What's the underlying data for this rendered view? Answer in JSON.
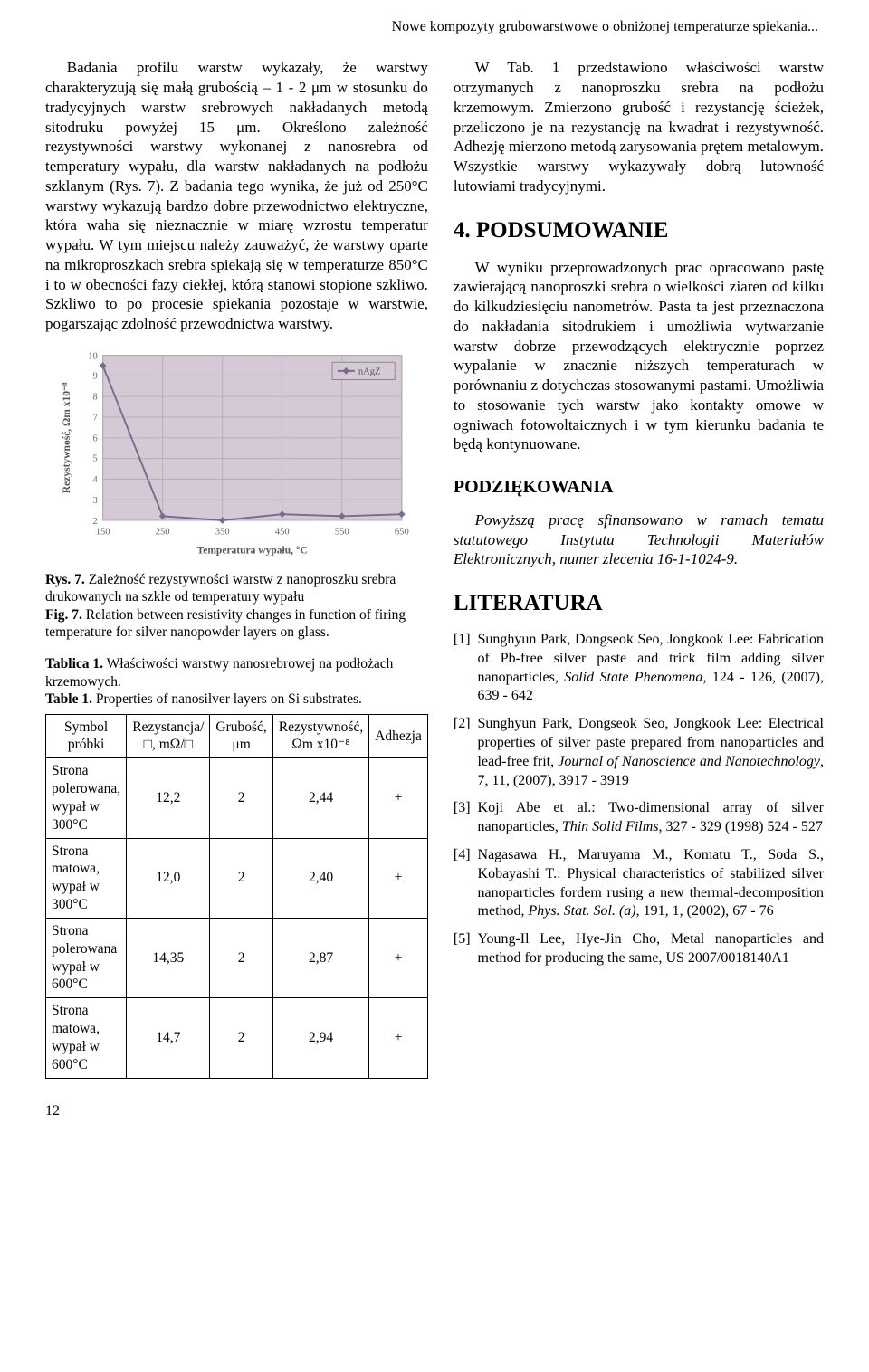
{
  "runningHeader": "Nowe kompozyty grubowarstwowe o obniżonej temperaturze spiekania...",
  "leftCol": {
    "para1": "Badania profilu warstw wykazały, że warstwy charakteryzują się małą grubością – 1 - 2 μm w stosunku do tradycyjnych warstw srebrowych nakładanych metodą sitodruku powyżej 15 μm. Określono zależność rezystywności warstwy wykonanej z nanosrebra od temperatury wypału, dla warstw nakładanych na podłożu szklanym (Rys. 7). Z badania tego wynika, że już od 250°C warstwy wykazują bardzo dobre przewodnictwo elektryczne, która waha się nieznacznie w miarę wzrostu temperatur wypału. W tym miejscu należy zauważyć, że warstwy oparte na mikroproszkach srebra spiekają się w temperaturze 850°C i to w obecności fazy ciekłej, którą stanowi stopione szkliwo. Szkliwo to po procesie spiekania pozostaje w warstwie, pogarszając zdolność przewodnictwa warstwy.",
    "chart": {
      "type": "line",
      "series_label": "nAgZ",
      "x_values": [
        150,
        250,
        350,
        450,
        550,
        650
      ],
      "y_values": [
        9.5,
        2.2,
        2.0,
        2.3,
        2.2,
        2.3
      ],
      "xlim": [
        150,
        650
      ],
      "ylim": [
        2,
        10
      ],
      "xtick_step": 100,
      "ytick_step": 1,
      "xlabel": "Temperatura wypału, °C",
      "ylabel": "Rezystywność, Ωm x10⁻⁸",
      "background_color": "#d6c9d6",
      "line_color": "#7a6a8c",
      "marker": "diamond",
      "marker_size": 6,
      "grid_color": "#b9abbc",
      "border_color": "#888888",
      "legend_pos": "top-right",
      "label_fontsize": 12,
      "tick_fontsize": 10
    },
    "figCaption": {
      "label_pl": "Rys. 7.",
      "text_pl": " Zależność rezystywności warstw z nanoproszku srebra drukowanych na szkle od temperatury wypału",
      "label_en": "Fig. 7.",
      "text_en": " Relation between resistivity changes in function of firing temperature for silver nanopowder layers on glass."
    },
    "tabCaption": {
      "label_pl": "Tablica 1.",
      "text_pl": " Właściwości warstwy nanosrebrowej na podłożach krzemowych.",
      "label_en": "Table 1.",
      "text_en": " Properties of nanosilver layers on Si substrates."
    },
    "table": {
      "headers": [
        "Symbol próbki",
        "Rezystancja/□, mΩ/□",
        "Grubość, μm",
        "Rezystywność, Ωm x10⁻⁸",
        "Adhezja"
      ],
      "rows": [
        [
          "Strona polerowana, wypał w 300°C",
          "12,2",
          "2",
          "2,44",
          "+"
        ],
        [
          "Strona matowa, wypał w 300°C",
          "12,0",
          "2",
          "2,40",
          "+"
        ],
        [
          "Strona polerowana wypał w 600°C",
          "14,35",
          "2",
          "2,87",
          "+"
        ],
        [
          "Strona matowa, wypał w 600°C",
          "14,7",
          "2",
          "2,94",
          "+"
        ]
      ],
      "col_align": [
        "left",
        "center",
        "center",
        "center",
        "center"
      ]
    }
  },
  "rightCol": {
    "para1": "W Tab. 1 przedstawiono właściwości warstw otrzymanych z nanoproszku srebra na podłożu krzemowym. Zmierzono grubość i rezystancję ścieżek, przeliczono je na rezystancję na kwadrat i rezystywność. Adhezję mierzono metodą zarysowania prętem metalowym. Wszystkie warstwy wykazywały dobrą lutowność lutowiami tradycyjnymi.",
    "h4": "4. PODSUMOWANIE",
    "para2": "W wyniku przeprowadzonych prac opracowano pastę zawierającą nanoproszki srebra o wielkości ziaren od kilku do kilkudziesięciu nanometrów. Pasta ta jest przeznaczona do nakładania sitodrukiem i umożliwia wytwarzanie warstw dobrze przewodzących elektrycznie poprzez wypalanie w znacznie niższych temperaturach w porównaniu z dotychczas stosowanymi pastami. Umożliwia to stosowanie tych warstw jako kontakty omowe w ogniwach fotowoltaicznych i w tym kierunku badania te będą kontynuowane.",
    "hAck": "PODZIĘKOWANIA",
    "ack": "Powyższą pracę sfinansowano w ramach tematu statutowego Instytutu Technologii Materiałów Elektronicznych, numer zlecenia 16-1-1024-9.",
    "hLit": "LITERATURA",
    "refs": [
      {
        "n": "[1]",
        "t": "Sunghyun Park, Dongseok Seo, Jongkook Lee: Fabrication of Pb-free silver paste and trick film adding silver nanoparticles, <em>Solid State Phenomena</em>, 124 - 126, (2007), 639 - 642"
      },
      {
        "n": "[2]",
        "t": "Sunghyun Park, Dongseok Seo, Jongkook Lee: Electrical properties of silver paste prepared from nanoparticles and lead-free frit, <em>Journal of Nanoscience and Nanotechnology</em>, 7, 11, (2007), 3917 - 3919"
      },
      {
        "n": "[3]",
        "t": "Koji Abe et al.: Two-dimensional array of silver nanoparticles, <em>Thin Solid Films</em>, 327 - 329 (1998) 524 - 527"
      },
      {
        "n": "[4]",
        "t": "Nagasawa H., Maruyama M., Komatu T., Soda S., Kobayashi T.: Physical characteristics of stabilized silver nanoparticles fordem rusing a new thermal-decomposition method, <em>Phys. Stat. Sol. (a)</em>, 191, 1, (2002), 67 - 76"
      },
      {
        "n": "[5]",
        "t": "Young-Il Lee, Hye-Jin Cho,   Metal nanoparticles and method for producing the same, US 2007/0018140A1"
      }
    ]
  },
  "pageNumber": "12"
}
